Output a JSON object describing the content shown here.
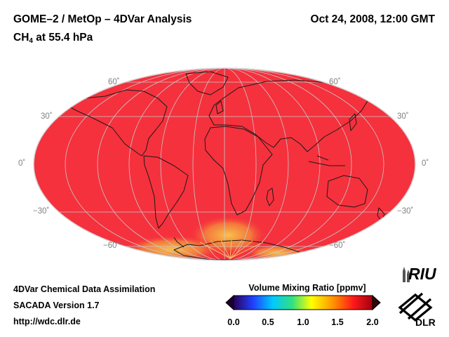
{
  "header": {
    "title": "GOME–2 / MetOp – 4DVar Analysis",
    "species": "CH",
    "species_sub": "4",
    "level": " at 55.4 hPa",
    "datetime": "Oct 24, 2008, 12:00 GMT"
  },
  "lat_labels": {
    "n60": "60˚",
    "n30": "30˚",
    "eq": "0˚",
    "s30": "−30˚",
    "s60": "−60˚"
  },
  "footer": {
    "line1": "4DVar Chemical Data Assimilation",
    "line2": "SACADA Version 1.7",
    "line3": "http://wdc.dlr.de"
  },
  "colorbar": {
    "title": "Volume Mixing Ratio [ppmv]",
    "ticks": [
      "0.0",
      "0.5",
      "1.0",
      "1.5",
      "2.0"
    ],
    "stops": [
      "#2a005a",
      "#2040ff",
      "#00c8ff",
      "#30e080",
      "#ffff00",
      "#ff9000",
      "#ff1a1a",
      "#a00010"
    ]
  },
  "logos": {
    "riu": "RIU",
    "dlr": "DLR"
  },
  "colors": {
    "field": "#f5313d",
    "enhanced": "#f6b24a",
    "graticule": "#c8c8c8"
  }
}
